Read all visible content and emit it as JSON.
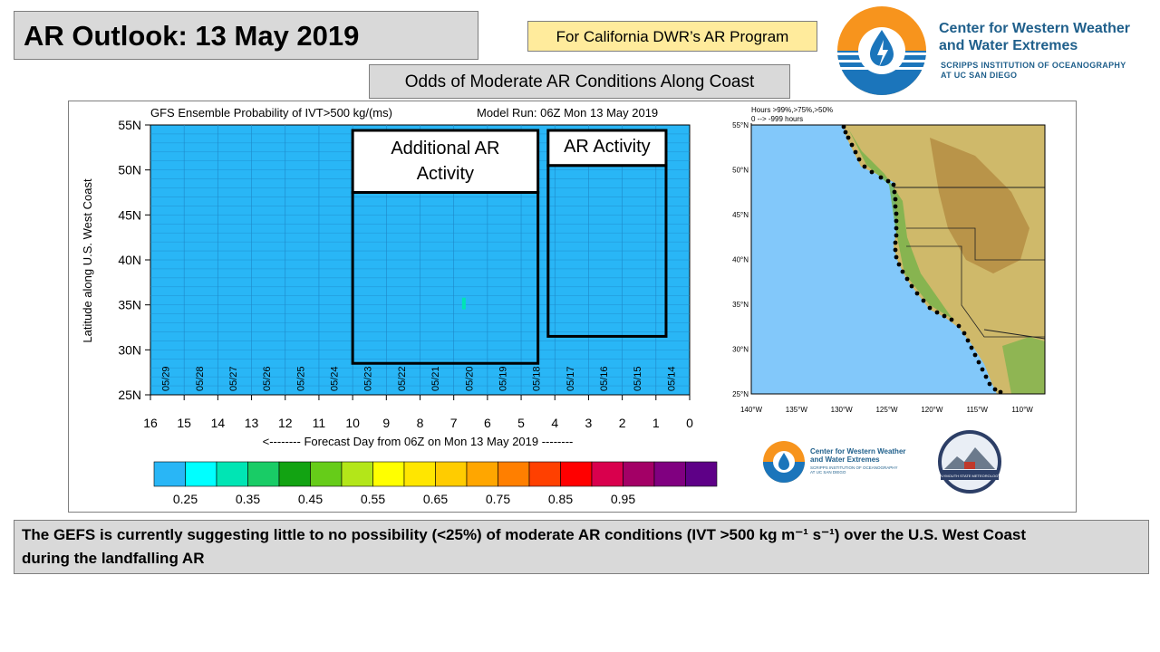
{
  "header": {
    "title": "AR Outlook: 13 May 2019",
    "program_note": "For California DWR’s AR Program",
    "subtitle": "Odds of Moderate AR Conditions Along Coast"
  },
  "org": {
    "name_line1": "Center for Western Weather",
    "name_line2": "and Water Extremes",
    "sub_line1": "SCRIPPS INSTITUTION OF OCEANOGRAPHY",
    "sub_line2": "AT UC SAN DIEGO",
    "small_name_line1": "Center for Western Weather",
    "small_name_line2": "and Water Extremes",
    "small_sub_line1": "SCRIPPS INSTITUTION OF OCEANOGRAPHY",
    "small_sub_line2": "AT UC SAN DIEGO",
    "partner_label": "PLYMOUTH STATE METEOROLOGY"
  },
  "chart_data": {
    "type": "heatmap",
    "title": "GFS Ensemble Probability of IVT>500 kg/(ms)",
    "model_run": "Model Run: 06Z Mon 13 May 2019",
    "xlabel": "<-------- Forecast Day from 06Z on Mon 13 May 2019 --------",
    "ylabel": "Latitude along U.S. West Coast",
    "x_range": [
      16,
      0
    ],
    "x_ticks": [
      "16",
      "15",
      "14",
      "13",
      "12",
      "11",
      "10",
      "9",
      "8",
      "7",
      "6",
      "5",
      "4",
      "3",
      "2",
      "1",
      "0"
    ],
    "y_range": [
      25,
      55
    ],
    "y_ticks": [
      "55N",
      "50N",
      "45N",
      "40N",
      "35N",
      "30N",
      "25N"
    ],
    "date_labels": [
      "05/29",
      "05/28",
      "05/27",
      "05/26",
      "05/25",
      "05/24",
      "05/23",
      "05/22",
      "05/21",
      "05/20",
      "05/19",
      "05/18",
      "05/17",
      "05/16",
      "05/15",
      "05/14"
    ],
    "background_probability": "<0.25",
    "anomalies": [
      {
        "forecast_day": 6.7,
        "lat_min": 34.5,
        "lat_max": 35.8,
        "probability_bin": "0.25-0.35"
      }
    ],
    "colorbar": {
      "colors": [
        "#29b6f6",
        "#00ffff",
        "#00e5b4",
        "#19cc66",
        "#12a312",
        "#66cc19",
        "#b3e619",
        "#ffff00",
        "#ffe600",
        "#ffcc00",
        "#ffa600",
        "#ff7f00",
        "#ff4000",
        "#ff0000",
        "#d9004d",
        "#a30066",
        "#800080",
        "#5e0087"
      ],
      "labels": [
        "0.25",
        "0.35",
        "0.45",
        "0.55",
        "0.65",
        "0.75",
        "0.85",
        "0.95"
      ]
    },
    "annotations": [
      {
        "label_line1": "Additional AR",
        "label_line2": "Activity",
        "day_start": 10,
        "day_end": 4.5,
        "lat_min": 28.5,
        "lat_max": 47.5
      },
      {
        "label_line1": "AR Activity",
        "label_line2": "",
        "day_start": 4.2,
        "day_end": 0.7,
        "lat_min": 31.5,
        "lat_max": 50.5
      }
    ]
  },
  "map": {
    "legend_line1": "Hours >99%,>75%,>50%",
    "legend_line2": "0 --> -999 hours",
    "lat_labels": [
      "55°N",
      "50°N",
      "45°N",
      "40°N",
      "35°N",
      "30°N",
      "25°N"
    ],
    "lon_labels": [
      "140°W",
      "135°W",
      "130°W",
      "125°W",
      "120°W",
      "115°W",
      "110°W"
    ],
    "colors": {
      "ocean": "#82c8fa",
      "land": "#cfb96a",
      "land_high": "#a8762e",
      "land_low": "#74b34a"
    }
  },
  "summary": {
    "line1": "The GEFS is currently suggesting little to no possibility (<25%) of moderate AR conditions (IVT >500 kg m⁻¹ s⁻¹) over the U.S. West Coast",
    "line2": "during the landfalling AR"
  }
}
